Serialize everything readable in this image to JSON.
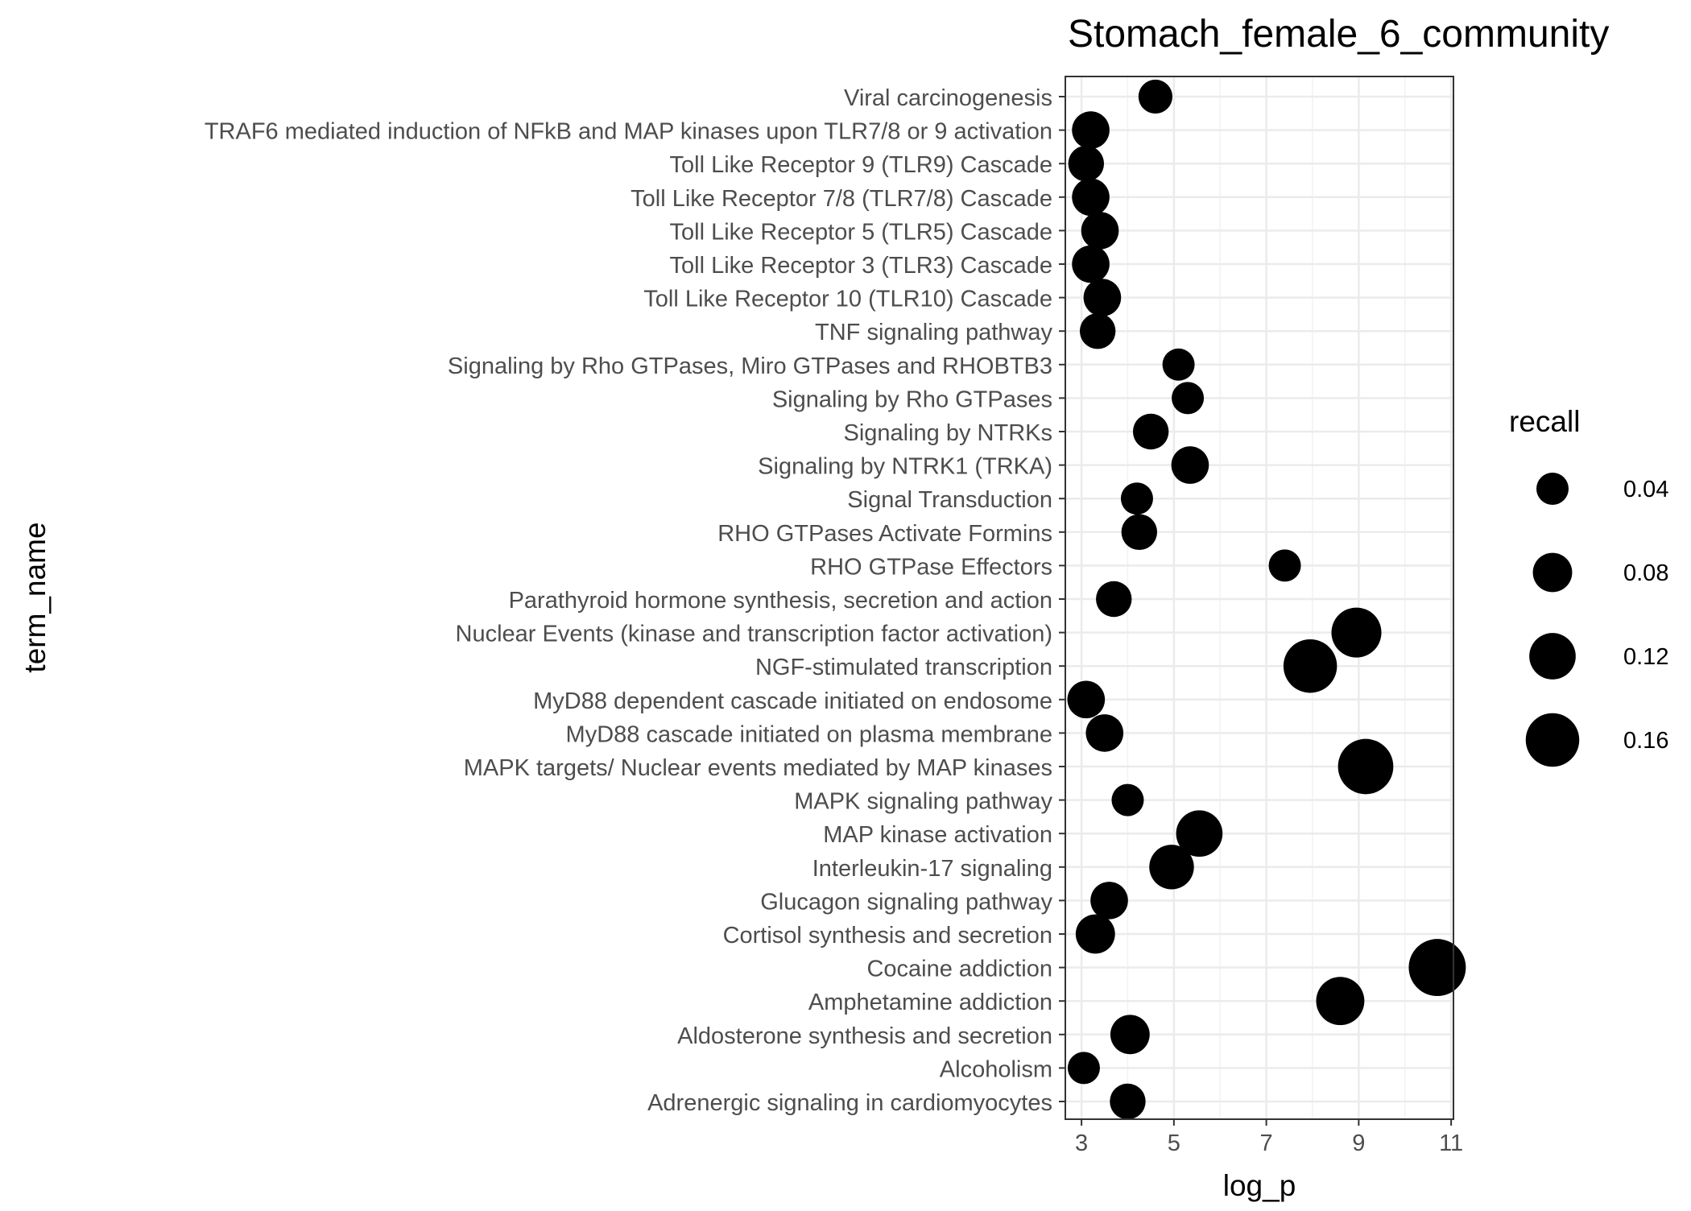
{
  "chart_data": {
    "type": "scatter",
    "title": "Stomach_female_6_community",
    "xlabel": "log_p",
    "ylabel": "term_name",
    "xlim": [
      2.65,
      11.05
    ],
    "x_ticks": [
      3,
      5,
      7,
      9,
      11
    ],
    "grid": true,
    "legend": {
      "title": "recall",
      "position": "right",
      "entries": [
        {
          "label": "0.04",
          "value": 0.04
        },
        {
          "label": "0.08",
          "value": 0.08
        },
        {
          "label": "0.12",
          "value": 0.12
        },
        {
          "label": "0.16",
          "value": 0.16
        }
      ]
    },
    "size_range": {
      "min_recall": 0.04,
      "max_recall": 0.185,
      "min_radius": 20,
      "max_radius": 36
    },
    "points": [
      {
        "term": "Viral carcinogenesis",
        "log_p": 4.6,
        "recall": 0.05
      },
      {
        "term": "TRAF6 mediated induction of NFkB and MAP kinases upon TLR7/8 or 9 activation",
        "log_p": 3.2,
        "recall": 0.07
      },
      {
        "term": "Toll Like Receptor 9 (TLR9) Cascade",
        "log_p": 3.1,
        "recall": 0.06
      },
      {
        "term": "Toll Like Receptor 7/8 (TLR7/8) Cascade",
        "log_p": 3.2,
        "recall": 0.07
      },
      {
        "term": "Toll Like Receptor 5 (TLR5) Cascade",
        "log_p": 3.4,
        "recall": 0.07
      },
      {
        "term": "Toll Like Receptor 3 (TLR3) Cascade",
        "log_p": 3.2,
        "recall": 0.07
      },
      {
        "term": "Toll Like Receptor 10 (TLR10) Cascade",
        "log_p": 3.45,
        "recall": 0.07
      },
      {
        "term": "TNF signaling pathway",
        "log_p": 3.35,
        "recall": 0.06
      },
      {
        "term": "Signaling by Rho GTPases, Miro GTPases and RHOBTB3",
        "log_p": 5.1,
        "recall": 0.03
      },
      {
        "term": "Signaling by Rho GTPases",
        "log_p": 5.3,
        "recall": 0.03
      },
      {
        "term": "Signaling by NTRKs",
        "log_p": 4.5,
        "recall": 0.06
      },
      {
        "term": "Signaling by NTRK1 (TRKA)",
        "log_p": 5.35,
        "recall": 0.07
      },
      {
        "term": "Signal Transduction",
        "log_p": 4.2,
        "recall": 0.01
      },
      {
        "term": "RHO GTPases Activate Formins",
        "log_p": 4.25,
        "recall": 0.06
      },
      {
        "term": "RHO GTPase Effectors",
        "log_p": 7.4,
        "recall": 0.04
      },
      {
        "term": "Parathyroid hormone synthesis, secretion and action",
        "log_p": 3.7,
        "recall": 0.06
      },
      {
        "term": "Nuclear Events (kinase and transcription factor activation)",
        "log_p": 8.95,
        "recall": 0.14
      },
      {
        "term": "NGF-stimulated transcription",
        "log_p": 7.95,
        "recall": 0.16
      },
      {
        "term": "MyD88 dependent cascade initiated on endosome",
        "log_p": 3.1,
        "recall": 0.07
      },
      {
        "term": "MyD88 cascade initiated on plasma membrane",
        "log_p": 3.5,
        "recall": 0.07
      },
      {
        "term": "MAPK targets/ Nuclear events mediated by MAP kinases",
        "log_p": 9.15,
        "recall": 0.17
      },
      {
        "term": "MAPK signaling pathway",
        "log_p": 4.0,
        "recall": 0.04
      },
      {
        "term": "MAP kinase activation",
        "log_p": 5.55,
        "recall": 0.12
      },
      {
        "term": "Interleukin-17 signaling",
        "log_p": 4.95,
        "recall": 0.11
      },
      {
        "term": "Glucagon signaling pathway",
        "log_p": 3.6,
        "recall": 0.07
      },
      {
        "term": "Cortisol synthesis and secretion",
        "log_p": 3.3,
        "recall": 0.08
      },
      {
        "term": "Cocaine addiction",
        "log_p": 10.7,
        "recall": 0.18
      },
      {
        "term": "Amphetamine addiction",
        "log_p": 8.6,
        "recall": 0.13
      },
      {
        "term": "Aldosterone synthesis and secretion",
        "log_p": 4.05,
        "recall": 0.08
      },
      {
        "term": "Alcoholism",
        "log_p": 3.05,
        "recall": 0.04
      },
      {
        "term": "Adrenergic signaling in cardiomyocytes",
        "log_p": 4.0,
        "recall": 0.06
      }
    ]
  }
}
